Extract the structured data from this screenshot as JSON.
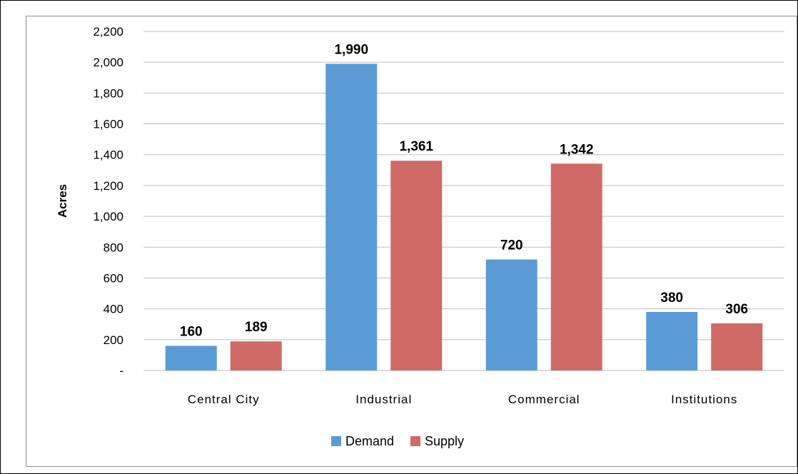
{
  "chart_data": {
    "type": "bar",
    "title": "",
    "xlabel": "",
    "ylabel": "Acres",
    "categories": [
      "Central City",
      "Industrial",
      "Commercial",
      "Institutions"
    ],
    "series": [
      {
        "name": "Demand",
        "values": [
          160,
          1990,
          720,
          380
        ],
        "color": "#5b9bd5"
      },
      {
        "name": "Supply",
        "values": [
          189,
          1361,
          1342,
          306
        ],
        "color": "#d06a66"
      }
    ],
    "data_labels": [
      [
        "160",
        "1,990",
        "720",
        "380"
      ],
      [
        "189",
        "1,361",
        "1,342",
        "306"
      ]
    ],
    "ylim": [
      0,
      2200
    ],
    "ytick_values": [
      0,
      200,
      400,
      600,
      800,
      1000,
      1200,
      1400,
      1600,
      1800,
      2000,
      2200
    ],
    "ytick_labels": [
      "-",
      "200",
      "400",
      "600",
      "800",
      "1,000",
      "1,200",
      "1,400",
      "1,600",
      "1,800",
      "2,000",
      "2,200"
    ],
    "grid": true,
    "legend_position": "bottom"
  }
}
